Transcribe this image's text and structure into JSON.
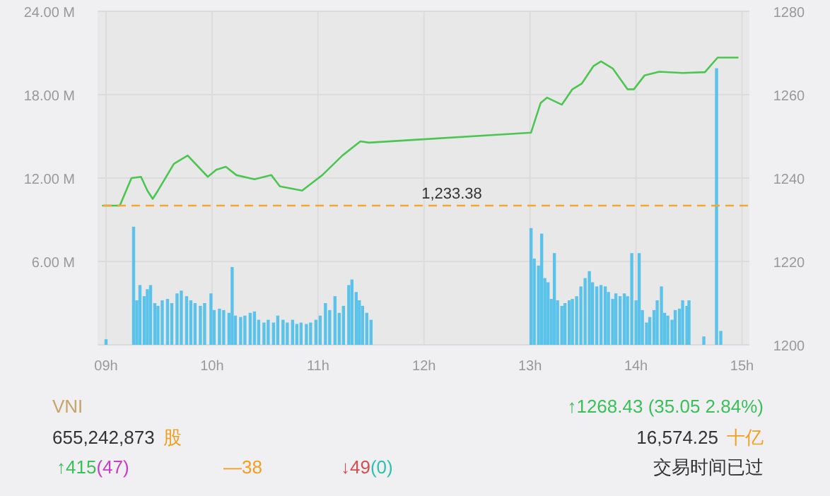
{
  "chart_data": [
    {
      "type": "bar",
      "xlim": [
        8.92,
        15.07
      ],
      "xticks": [
        {
          "value": 9,
          "label": "09h"
        },
        {
          "value": 10,
          "label": "10h"
        },
        {
          "value": 11,
          "label": "11h"
        },
        {
          "value": 12,
          "label": "12h"
        },
        {
          "value": 13,
          "label": "13h"
        },
        {
          "value": 14,
          "label": "14h"
        },
        {
          "value": 15,
          "label": "15h"
        }
      ],
      "ylim": [
        0,
        24
      ],
      "yticks": [
        {
          "value": 0,
          "label": null
        },
        {
          "value": 6,
          "label": "6.00 M"
        },
        {
          "value": 12,
          "label": "12.00 M"
        },
        {
          "value": 18,
          "label": "18.00 M"
        },
        {
          "value": 24,
          "label": "24.00 M"
        }
      ],
      "y2lim": [
        1200,
        1280
      ],
      "y2ticks": [
        1200,
        1220,
        1240,
        1260,
        1280
      ],
      "grid": true,
      "ref_lines": [
        {
          "axis": "y2",
          "value": 1233.38,
          "label": "1,233.38",
          "color": "#f0a830",
          "line_style": "dashed"
        }
      ],
      "series": [
        {
          "type": "bar",
          "color": "#5bc3ea",
          "x": [
            9.0,
            9.26,
            9.29,
            9.32,
            9.36,
            9.39,
            9.42,
            9.46,
            9.49,
            9.53,
            9.58,
            9.62,
            9.67,
            9.71,
            9.76,
            9.8,
            9.84,
            9.89,
            9.93,
            9.99,
            10.02,
            10.07,
            10.11,
            10.16,
            10.19,
            10.22,
            10.27,
            10.31,
            10.36,
            10.4,
            10.44,
            10.49,
            10.53,
            10.58,
            10.62,
            10.67,
            10.71,
            10.76,
            10.8,
            10.84,
            10.89,
            10.93,
            10.98,
            11.02,
            11.07,
            11.11,
            11.16,
            11.2,
            11.24,
            11.29,
            11.32,
            11.36,
            11.39,
            11.42,
            11.46,
            11.5,
            13.01,
            13.04,
            13.08,
            13.11,
            13.14,
            13.17,
            13.2,
            13.23,
            13.26,
            13.3,
            13.33,
            13.37,
            13.4,
            13.44,
            13.48,
            13.52,
            13.56,
            13.59,
            13.63,
            13.67,
            13.71,
            13.74,
            13.78,
            13.81,
            13.85,
            13.89,
            13.92,
            13.96,
            14.0,
            14.03,
            14.06,
            14.1,
            14.13,
            14.17,
            14.2,
            14.24,
            14.27,
            14.3,
            14.34,
            14.37,
            14.41,
            14.44,
            14.48,
            14.5,
            14.64,
            14.76,
            14.8
          ],
          "values": [
            0.4,
            8.5,
            3.2,
            4.3,
            3.5,
            4.0,
            4.3,
            3.0,
            2.8,
            3.2,
            3.3,
            3.0,
            3.7,
            3.9,
            3.5,
            3.2,
            3.0,
            2.8,
            3.0,
            3.7,
            2.5,
            2.6,
            2.5,
            2.3,
            5.6,
            2.1,
            2.0,
            2.1,
            2.3,
            2.4,
            1.8,
            1.6,
            1.8,
            1.6,
            2.1,
            1.8,
            1.6,
            1.8,
            1.5,
            1.6,
            1.5,
            1.6,
            1.8,
            2.1,
            3.0,
            2.5,
            3.5,
            2.3,
            2.8,
            4.3,
            4.7,
            3.8,
            3.2,
            2.8,
            2.3,
            1.8,
            8.4,
            6.2,
            5.7,
            8.0,
            4.8,
            4.5,
            3.3,
            6.6,
            3.2,
            2.8,
            3.0,
            3.2,
            3.3,
            3.5,
            4.2,
            4.8,
            5.3,
            4.5,
            4.2,
            4.3,
            4.2,
            3.8,
            3.3,
            3.7,
            3.5,
            3.7,
            3.5,
            6.6,
            3.2,
            6.6,
            2.5,
            1.6,
            2.0,
            2.5,
            3.2,
            4.2,
            2.3,
            2.1,
            1.8,
            2.5,
            2.6,
            3.2,
            2.8,
            3.2,
            0.6,
            19.9,
            1.0
          ]
        },
        {
          "type": "line",
          "axis": "y2",
          "color": "#4cc552",
          "x": [
            8.97,
            9.13,
            9.24,
            9.33,
            9.39,
            9.44,
            9.49,
            9.64,
            9.77,
            9.96,
            10.04,
            10.13,
            10.23,
            10.4,
            10.56,
            10.64,
            10.85,
            11.04,
            11.23,
            11.4,
            11.48,
            13.01,
            13.1,
            13.16,
            13.3,
            13.4,
            13.49,
            13.6,
            13.67,
            13.78,
            13.92,
            13.98,
            14.08,
            14.22,
            14.44,
            14.65,
            14.77,
            14.96
          ],
          "values": [
            1233.4,
            1233.4,
            1240,
            1240.3,
            1237,
            1235,
            1237,
            1243.4,
            1245.4,
            1240.3,
            1242,
            1242.7,
            1240.7,
            1239.7,
            1240.7,
            1238,
            1237,
            1240.7,
            1245.4,
            1248.8,
            1248.5,
            1250.9,
            1258,
            1259.3,
            1257.6,
            1261.3,
            1262.7,
            1266.9,
            1268,
            1266.3,
            1261.3,
            1261.3,
            1264.6,
            1265.5,
            1265.2,
            1265.4,
            1268.9,
            1268.9
          ]
        }
      ]
    },
    {
      "type": "other",
      "annotations": [
        "VNI",
        "↑1268.43  (35.05  2.84%)",
        "655,242,873",
        "股",
        "16,574.25",
        "十亿",
        "↑415",
        "(47)",
        "—38",
        "↓49",
        "(0)",
        "交易时间已过"
      ]
    }
  ]
}
